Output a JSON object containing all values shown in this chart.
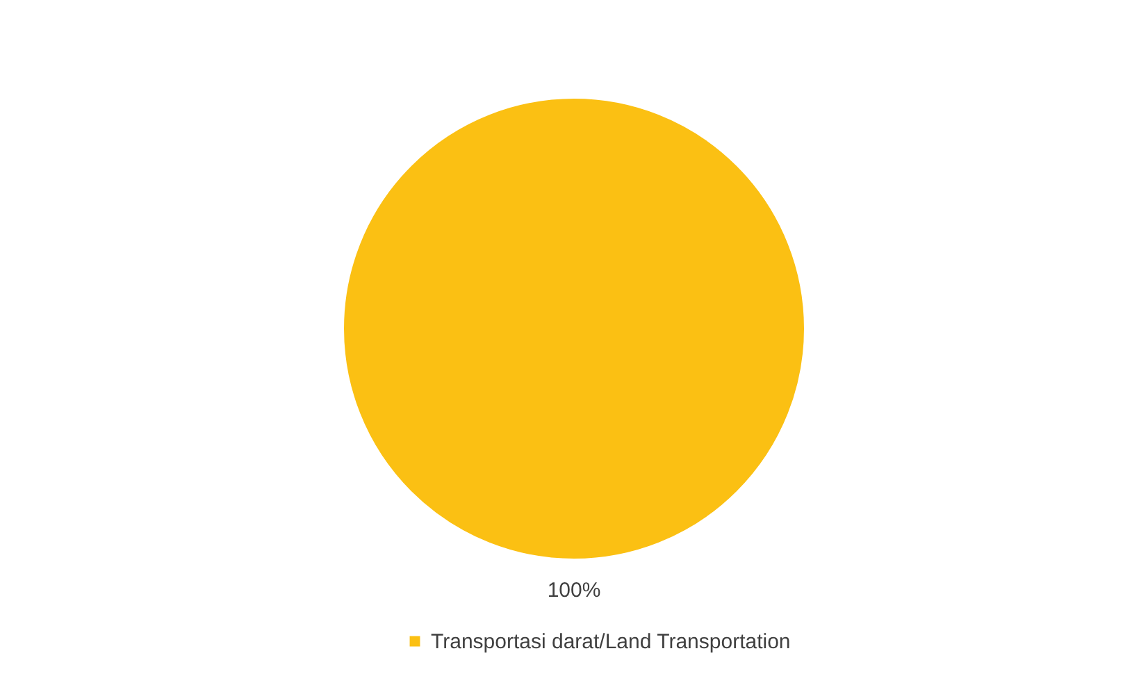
{
  "chart_data": {
    "type": "pie",
    "categories": [
      "Transportasi darat/Land Transportation"
    ],
    "values": [
      100
    ],
    "colors": [
      "#fbc013"
    ],
    "value_labels": [
      "100%"
    ],
    "legend": "bottom"
  }
}
